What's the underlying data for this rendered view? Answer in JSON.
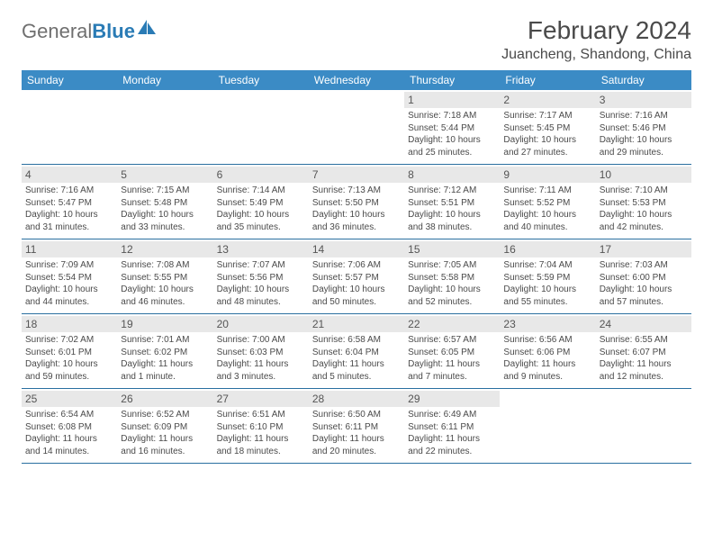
{
  "logo": {
    "text1": "General",
    "text2": "Blue"
  },
  "title": "February 2024",
  "location": "Juancheng, Shandong, China",
  "dayNames": [
    "Sunday",
    "Monday",
    "Tuesday",
    "Wednesday",
    "Thursday",
    "Friday",
    "Saturday"
  ],
  "colors": {
    "headerBg": "#3b8bc5",
    "headerText": "#ffffff",
    "dayNumBg": "#e8e8e8",
    "weekBorder": "#2a6fa0",
    "bodyText": "#4a4a4a",
    "logoGray": "#6f6f6f",
    "logoBlue": "#2a7bb5"
  },
  "weeks": [
    [
      null,
      null,
      null,
      null,
      {
        "n": "1",
        "sr": "7:18 AM",
        "ss": "5:44 PM",
        "dl": "10 hours and 25 minutes."
      },
      {
        "n": "2",
        "sr": "7:17 AM",
        "ss": "5:45 PM",
        "dl": "10 hours and 27 minutes."
      },
      {
        "n": "3",
        "sr": "7:16 AM",
        "ss": "5:46 PM",
        "dl": "10 hours and 29 minutes."
      }
    ],
    [
      {
        "n": "4",
        "sr": "7:16 AM",
        "ss": "5:47 PM",
        "dl": "10 hours and 31 minutes."
      },
      {
        "n": "5",
        "sr": "7:15 AM",
        "ss": "5:48 PM",
        "dl": "10 hours and 33 minutes."
      },
      {
        "n": "6",
        "sr": "7:14 AM",
        "ss": "5:49 PM",
        "dl": "10 hours and 35 minutes."
      },
      {
        "n": "7",
        "sr": "7:13 AM",
        "ss": "5:50 PM",
        "dl": "10 hours and 36 minutes."
      },
      {
        "n": "8",
        "sr": "7:12 AM",
        "ss": "5:51 PM",
        "dl": "10 hours and 38 minutes."
      },
      {
        "n": "9",
        "sr": "7:11 AM",
        "ss": "5:52 PM",
        "dl": "10 hours and 40 minutes."
      },
      {
        "n": "10",
        "sr": "7:10 AM",
        "ss": "5:53 PM",
        "dl": "10 hours and 42 minutes."
      }
    ],
    [
      {
        "n": "11",
        "sr": "7:09 AM",
        "ss": "5:54 PM",
        "dl": "10 hours and 44 minutes."
      },
      {
        "n": "12",
        "sr": "7:08 AM",
        "ss": "5:55 PM",
        "dl": "10 hours and 46 minutes."
      },
      {
        "n": "13",
        "sr": "7:07 AM",
        "ss": "5:56 PM",
        "dl": "10 hours and 48 minutes."
      },
      {
        "n": "14",
        "sr": "7:06 AM",
        "ss": "5:57 PM",
        "dl": "10 hours and 50 minutes."
      },
      {
        "n": "15",
        "sr": "7:05 AM",
        "ss": "5:58 PM",
        "dl": "10 hours and 52 minutes."
      },
      {
        "n": "16",
        "sr": "7:04 AM",
        "ss": "5:59 PM",
        "dl": "10 hours and 55 minutes."
      },
      {
        "n": "17",
        "sr": "7:03 AM",
        "ss": "6:00 PM",
        "dl": "10 hours and 57 minutes."
      }
    ],
    [
      {
        "n": "18",
        "sr": "7:02 AM",
        "ss": "6:01 PM",
        "dl": "10 hours and 59 minutes."
      },
      {
        "n": "19",
        "sr": "7:01 AM",
        "ss": "6:02 PM",
        "dl": "11 hours and 1 minute."
      },
      {
        "n": "20",
        "sr": "7:00 AM",
        "ss": "6:03 PM",
        "dl": "11 hours and 3 minutes."
      },
      {
        "n": "21",
        "sr": "6:58 AM",
        "ss": "6:04 PM",
        "dl": "11 hours and 5 minutes."
      },
      {
        "n": "22",
        "sr": "6:57 AM",
        "ss": "6:05 PM",
        "dl": "11 hours and 7 minutes."
      },
      {
        "n": "23",
        "sr": "6:56 AM",
        "ss": "6:06 PM",
        "dl": "11 hours and 9 minutes."
      },
      {
        "n": "24",
        "sr": "6:55 AM",
        "ss": "6:07 PM",
        "dl": "11 hours and 12 minutes."
      }
    ],
    [
      {
        "n": "25",
        "sr": "6:54 AM",
        "ss": "6:08 PM",
        "dl": "11 hours and 14 minutes."
      },
      {
        "n": "26",
        "sr": "6:52 AM",
        "ss": "6:09 PM",
        "dl": "11 hours and 16 minutes."
      },
      {
        "n": "27",
        "sr": "6:51 AM",
        "ss": "6:10 PM",
        "dl": "11 hours and 18 minutes."
      },
      {
        "n": "28",
        "sr": "6:50 AM",
        "ss": "6:11 PM",
        "dl": "11 hours and 20 minutes."
      },
      {
        "n": "29",
        "sr": "6:49 AM",
        "ss": "6:11 PM",
        "dl": "11 hours and 22 minutes."
      },
      null,
      null
    ]
  ]
}
